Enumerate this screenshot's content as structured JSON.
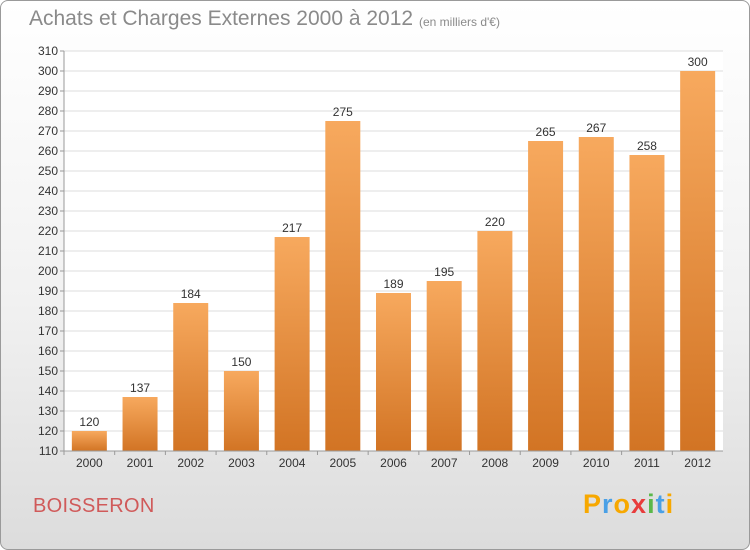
{
  "header": {
    "title": "Achats et Charges Externes 2000 à 2012",
    "subtitle": "(en milliers d'€)"
  },
  "footer": {
    "place": "BOISSERON",
    "logo_text": "Proxiti",
    "logo_letters": [
      {
        "ch": "P",
        "color": "#f7a800"
      },
      {
        "ch": "r",
        "color": "#4aa0e6"
      },
      {
        "ch": "o",
        "color": "#f7a800"
      },
      {
        "ch": "x",
        "color": "#e83c3c"
      },
      {
        "ch": "i",
        "color": "#5ab84a"
      },
      {
        "ch": "t",
        "color": "#4aa0e6"
      },
      {
        "ch": "i",
        "color": "#f7a800"
      }
    ]
  },
  "colors": {
    "bar_top": "#f7a95e",
    "bar_bottom": "#d27424",
    "grid": "#dddddd",
    "axis": "#999999",
    "text": "#333333",
    "place": "#d05a5a"
  },
  "chart_data": {
    "type": "bar",
    "title": "Achats et Charges Externes 2000 à 2012",
    "subtitle": "(en milliers d'€)",
    "xlabel": "",
    "ylabel": "",
    "categories": [
      "2000",
      "2001",
      "2002",
      "2003",
      "2004",
      "2005",
      "2006",
      "2007",
      "2008",
      "2009",
      "2010",
      "2011",
      "2012"
    ],
    "values": [
      120,
      137,
      184,
      150,
      217,
      275,
      189,
      195,
      220,
      265,
      267,
      258,
      300
    ],
    "ylim": [
      110,
      310
    ],
    "ytick_step": 10,
    "grid": true,
    "legend": "none"
  }
}
